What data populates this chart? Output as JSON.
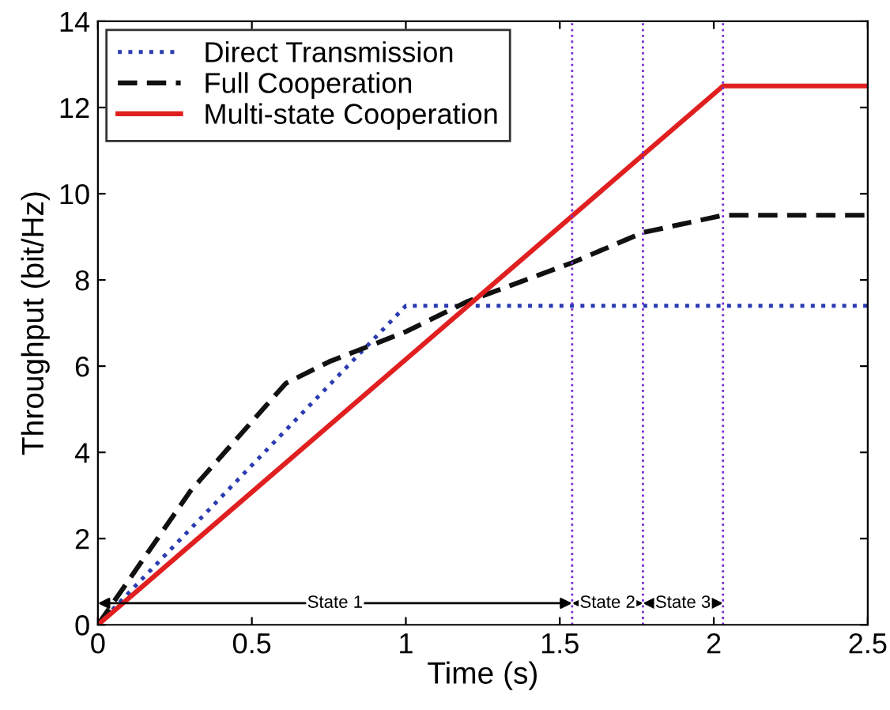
{
  "chart_data": {
    "type": "line",
    "xlabel": "Time (s)",
    "ylabel": "Throughput (bit/Hz)",
    "xlim": [
      0,
      2.5
    ],
    "ylim": [
      0,
      14
    ],
    "xticks": [
      0,
      0.5,
      1,
      1.5,
      2,
      2.5
    ],
    "yticks": [
      0,
      2,
      4,
      6,
      8,
      10,
      12,
      14
    ],
    "grid": false,
    "legend": "top left",
    "series": [
      {
        "name": "Direct Transmission",
        "color": "#2b3bb0",
        "line_style": "dotted",
        "x": [
          0,
          1.0,
          2.5
        ],
        "values": [
          0,
          7.4,
          7.4
        ]
      },
      {
        "name": "Full Cooperation",
        "color": "#111111",
        "line_style": "dashed",
        "x": [
          0,
          0.3,
          0.61,
          0.75,
          1.0,
          1.2,
          1.54,
          1.77,
          2.03,
          2.5
        ],
        "values": [
          0,
          3.1,
          5.6,
          6.1,
          6.8,
          7.5,
          8.4,
          9.1,
          9.5,
          9.5
        ]
      },
      {
        "name": "Multi-state Cooperation",
        "color": "#e02020",
        "line_style": "solid",
        "x": [
          0,
          2.03,
          2.5
        ],
        "values": [
          0,
          12.5,
          12.5
        ]
      }
    ],
    "ref_lines": [
      {
        "axis": "x",
        "value": 1.54,
        "color": "#7b2fd0",
        "line_style": "dotted"
      },
      {
        "axis": "x",
        "value": 1.77,
        "color": "#7b2fd0",
        "line_style": "dotted"
      },
      {
        "axis": "x",
        "value": 2.03,
        "color": "#7b2fd0",
        "line_style": "dotted"
      }
    ],
    "annotations": [
      {
        "text": "State 1",
        "x": 0.77,
        "y": 0.5
      },
      {
        "text": "State 2",
        "x": 1.655,
        "y": 0.5
      },
      {
        "text": "State 3",
        "x": 1.9,
        "y": 0.5
      }
    ]
  }
}
